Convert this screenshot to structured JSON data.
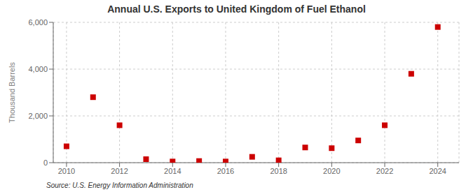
{
  "chart_data": {
    "type": "scatter",
    "title": "Annual U.S. Exports to United Kingdom of Fuel Ethanol",
    "ylabel": "Thousand Barrels",
    "annotations": [
      "Source: U.S. Energy Information Administration"
    ],
    "x": [
      2010,
      2011,
      2012,
      2013,
      2014,
      2015,
      2016,
      2017,
      2018,
      2019,
      2020,
      2021,
      2022,
      2023,
      2024
    ],
    "values": [
      700,
      2800,
      1600,
      150,
      50,
      70,
      50,
      250,
      100,
      650,
      620,
      950,
      1600,
      3800,
      5800
    ],
    "color": "#cc0000",
    "marker": "square",
    "xlim": [
      2009.5,
      2024.8
    ],
    "xticks": [
      2010,
      2012,
      2014,
      2016,
      2018,
      2020,
      2022,
      2024
    ],
    "ylim": [
      0,
      6000
    ],
    "yticks": [
      0,
      {
        "value": 2000,
        "label": "2,000"
      },
      {
        "value": 4000,
        "label": "4,000"
      },
      {
        "value": 6000,
        "label": "6,000"
      }
    ],
    "grid": true
  }
}
